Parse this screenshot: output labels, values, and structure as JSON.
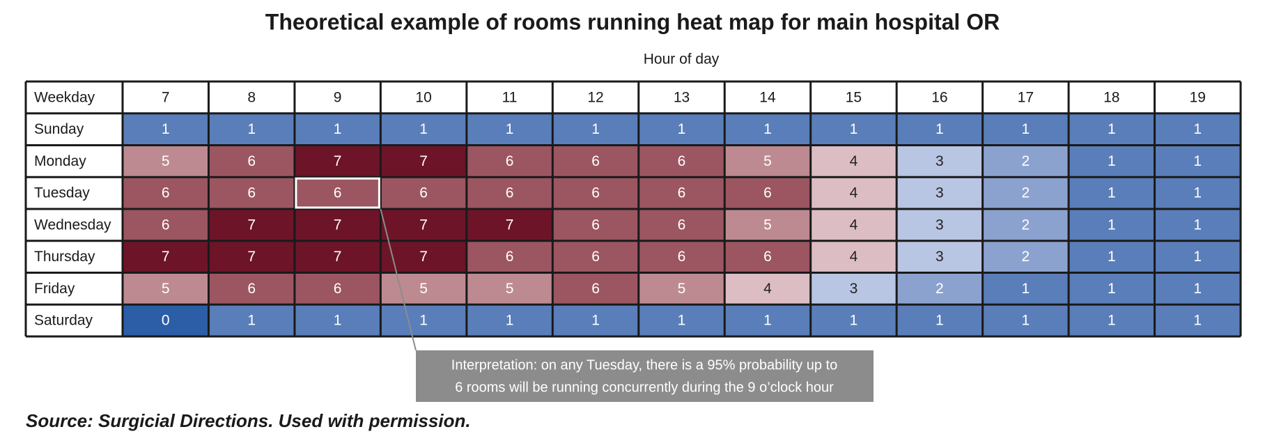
{
  "chart_data": {
    "type": "heatmap",
    "title": "Theoretical example of rooms running heat map for main hospital OR",
    "x_label": "Hour of day",
    "corner_label": "Weekday",
    "x": [
      7,
      8,
      9,
      10,
      11,
      12,
      13,
      14,
      15,
      16,
      17,
      18,
      19
    ],
    "categories": [
      "Sunday",
      "Monday",
      "Tuesday",
      "Wednesday",
      "Thursday",
      "Friday",
      "Saturday"
    ],
    "values": [
      [
        1,
        1,
        1,
        1,
        1,
        1,
        1,
        1,
        1,
        1,
        1,
        1,
        1
      ],
      [
        5,
        6,
        7,
        7,
        6,
        6,
        6,
        5,
        4,
        3,
        2,
        1,
        1
      ],
      [
        6,
        6,
        6,
        6,
        6,
        6,
        6,
        6,
        4,
        3,
        2,
        1,
        1
      ],
      [
        6,
        7,
        7,
        7,
        7,
        6,
        6,
        5,
        4,
        3,
        2,
        1,
        1
      ],
      [
        7,
        7,
        7,
        7,
        6,
        6,
        6,
        6,
        4,
        3,
        2,
        1,
        1
      ],
      [
        5,
        6,
        6,
        5,
        5,
        6,
        5,
        4,
        3,
        2,
        1,
        1,
        1
      ],
      [
        0,
        1,
        1,
        1,
        1,
        1,
        1,
        1,
        1,
        1,
        1,
        1,
        1
      ]
    ],
    "colorscale": [
      "#2b5ea7",
      "#5a7eb9",
      "#8ba2cf",
      "#b8c5e3",
      "#dcbdc3",
      "#bd8a91",
      "#9b5661",
      "#6d1429"
    ],
    "label_colors": [
      "#ffffff",
      "#ffffff",
      "#ffffff",
      "#222222",
      "#222222",
      "#ffffff",
      "#ffffff",
      "#ffffff"
    ],
    "annotation": [
      "Interpretation: on any Tuesday, there is a 95% probability up to",
      "6 rooms will be running concurrently during the 9 o’clock hour"
    ],
    "source": "Source: Surgicial Directions. Used with permission."
  }
}
